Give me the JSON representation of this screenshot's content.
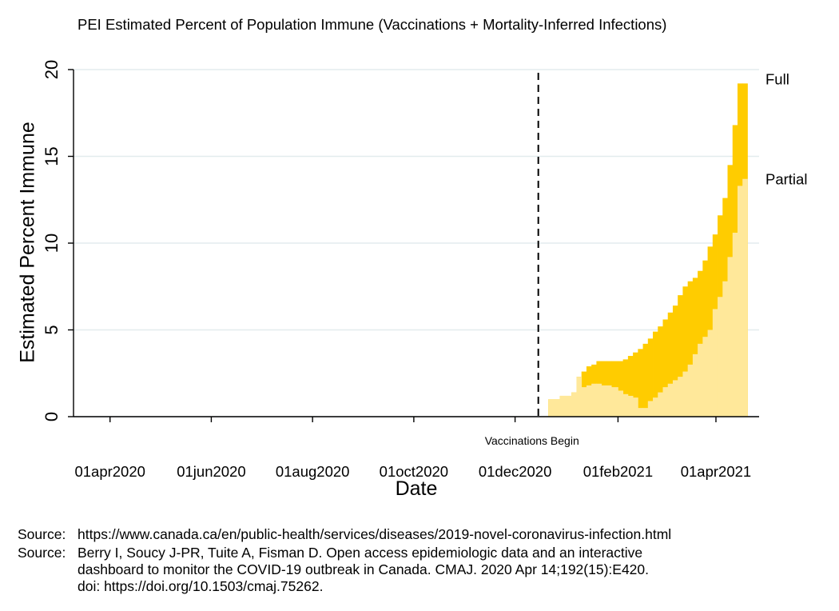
{
  "chart_data": {
    "type": "area",
    "title": "PEI Estimated Percent of Population Immune (Vaccinations + Mortality-Inferred Infections)",
    "xlabel": "Date",
    "ylabel": "Estimated Percent Immune",
    "ylim": [
      0,
      20
    ],
    "yticks": [
      "0",
      "5",
      "10",
      "15",
      "20"
    ],
    "xlim": [
      "2020-03-10",
      "2021-04-27"
    ],
    "xticks": [
      {
        "date": "2020-04-01",
        "label": "01apr2020"
      },
      {
        "date": "2020-06-01",
        "label": "01jun2020"
      },
      {
        "date": "2020-08-01",
        "label": "01aug2020"
      },
      {
        "date": "2020-10-01",
        "label": "01oct2020"
      },
      {
        "date": "2020-12-01",
        "label": "01dec2020"
      },
      {
        "date": "2021-02-01",
        "label": "01feb2021"
      },
      {
        "date": "2021-04-01",
        "label": "01apr2021"
      }
    ],
    "grid": true,
    "annotation": {
      "date": "2020-12-15",
      "label": "Vaccinations Begin"
    },
    "series": [
      {
        "name": "Partial",
        "color": "#ffe89a",
        "x": [
          "2020-12-21",
          "2020-12-28",
          "2021-01-04",
          "2021-01-07",
          "2021-01-10",
          "2021-01-13",
          "2021-01-16",
          "2021-01-19",
          "2021-01-22",
          "2021-01-25",
          "2021-01-28",
          "2021-02-01",
          "2021-02-04",
          "2021-02-07",
          "2021-02-10",
          "2021-02-13",
          "2021-02-16",
          "2021-02-19",
          "2021-02-22",
          "2021-02-25",
          "2021-02-28",
          "2021-03-03",
          "2021-03-06",
          "2021-03-09",
          "2021-03-12",
          "2021-03-15",
          "2021-03-18",
          "2021-03-21",
          "2021-03-24",
          "2021-03-27",
          "2021-03-30",
          "2021-04-02",
          "2021-04-05",
          "2021-04-08",
          "2021-04-11",
          "2021-04-14",
          "2021-04-17"
        ],
        "values": [
          1.0,
          1.2,
          1.4,
          2.3,
          1.7,
          1.8,
          1.9,
          1.9,
          1.8,
          1.8,
          1.7,
          1.5,
          1.3,
          1.2,
          1.1,
          0.5,
          0.5,
          0.9,
          1.1,
          1.4,
          1.7,
          1.9,
          2.1,
          2.3,
          2.6,
          3.0,
          3.6,
          4.2,
          4.6,
          5.0,
          6.2,
          6.9,
          7.8,
          9.2,
          10.6,
          13.3,
          13.7
        ]
      },
      {
        "name": "Full",
        "color": "#ffcc00",
        "x": [
          "2020-12-21",
          "2020-12-28",
          "2021-01-04",
          "2021-01-07",
          "2021-01-10",
          "2021-01-13",
          "2021-01-16",
          "2021-01-19",
          "2021-01-22",
          "2021-01-25",
          "2021-01-28",
          "2021-02-01",
          "2021-02-04",
          "2021-02-07",
          "2021-02-10",
          "2021-02-13",
          "2021-02-16",
          "2021-02-19",
          "2021-02-22",
          "2021-02-25",
          "2021-02-28",
          "2021-03-03",
          "2021-03-06",
          "2021-03-09",
          "2021-03-12",
          "2021-03-15",
          "2021-03-18",
          "2021-03-21",
          "2021-03-24",
          "2021-03-27",
          "2021-03-30",
          "2021-04-02",
          "2021-04-05",
          "2021-04-08",
          "2021-04-11",
          "2021-04-14",
          "2021-04-17"
        ],
        "values": [
          1.0,
          1.2,
          1.4,
          2.3,
          2.6,
          2.9,
          3.0,
          3.2,
          3.2,
          3.2,
          3.2,
          3.2,
          3.3,
          3.5,
          3.7,
          3.9,
          4.2,
          4.5,
          4.9,
          5.2,
          5.6,
          6.0,
          6.4,
          7.0,
          7.5,
          7.8,
          8.0,
          8.4,
          9.0,
          9.8,
          10.5,
          11.6,
          12.6,
          14.5,
          16.8,
          19.2,
          19.2
        ]
      }
    ],
    "legend": "labels at right end of series"
  },
  "sources": [
    {
      "prefix": "Source:",
      "lines": [
        "https://www.canada.ca/en/public-health/services/diseases/2019-novel-coronavirus-infection.html"
      ]
    },
    {
      "prefix": "Source:",
      "lines": [
        "Berry I, Soucy J-PR, Tuite A, Fisman D. Open access epidemiologic data and an interactive",
        "dashboard to monitor the COVID-19 outbreak in Canada. CMAJ. 2020 Apr 14;192(15):E420.",
        "doi: https://doi.org/10.1503/cmaj.75262."
      ]
    }
  ]
}
